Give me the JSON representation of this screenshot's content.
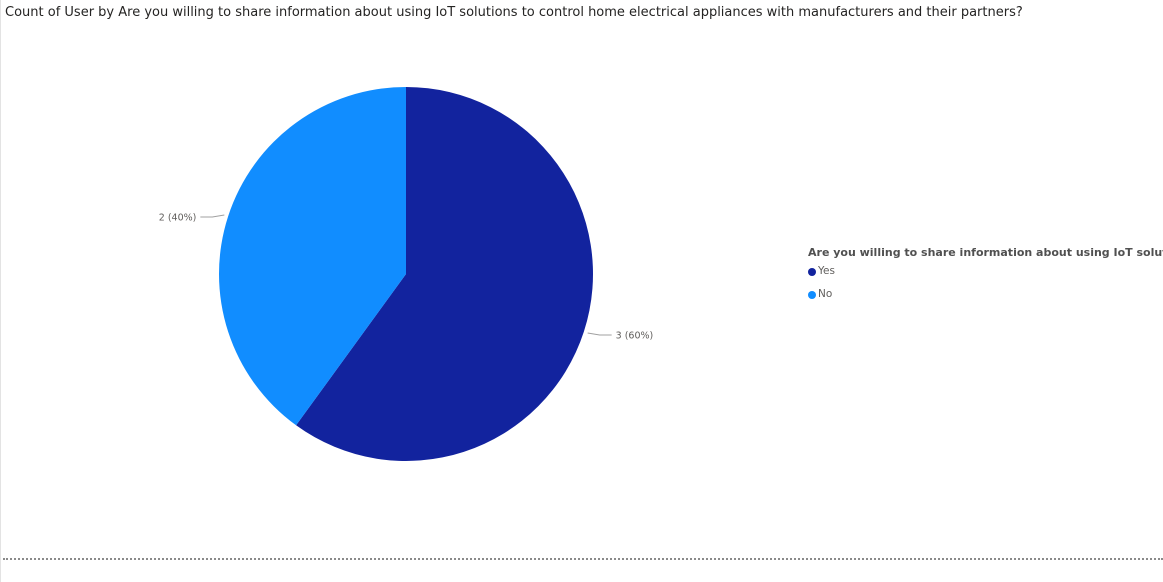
{
  "chart_data": {
    "type": "pie",
    "title": "Count of User by Are you willing to share information about using IoT solutions to control home electrical appliances with manufacturers and their partners?",
    "legend_title": "Are you willing to share information about using IoT solutions",
    "legend_position": "right",
    "slices": [
      {
        "name": "Yes",
        "value": 3,
        "percent": 60,
        "label": "3 (60%)",
        "color": "#12239e"
      },
      {
        "name": "No",
        "value": 2,
        "percent": 40,
        "label": "2 (40%)",
        "color": "#118dff"
      }
    ]
  }
}
